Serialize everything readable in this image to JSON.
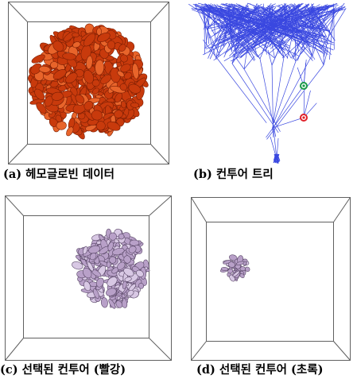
{
  "captions": {
    "a": "(a) 헤모글로빈 데이터",
    "b": "(b) 컨투어 트리",
    "c": "(c) 선택된 컨투어 (빨강)",
    "d": "(d) 선택된 컨투어 (초록)"
  },
  "colors": {
    "volume_orange": "#c83a0c",
    "volume_orange_highlight": "#e8642a",
    "tree_blue": "#3a48e0",
    "node_red": "#e0202a",
    "node_green": "#1a9a4a",
    "contour_lavender": "#b8a0c8",
    "contour_dark": "#5a4868",
    "box_frame": "#606060"
  },
  "icons": {
    "red_node": "red-node-icon",
    "green_node": "green-node-icon"
  }
}
